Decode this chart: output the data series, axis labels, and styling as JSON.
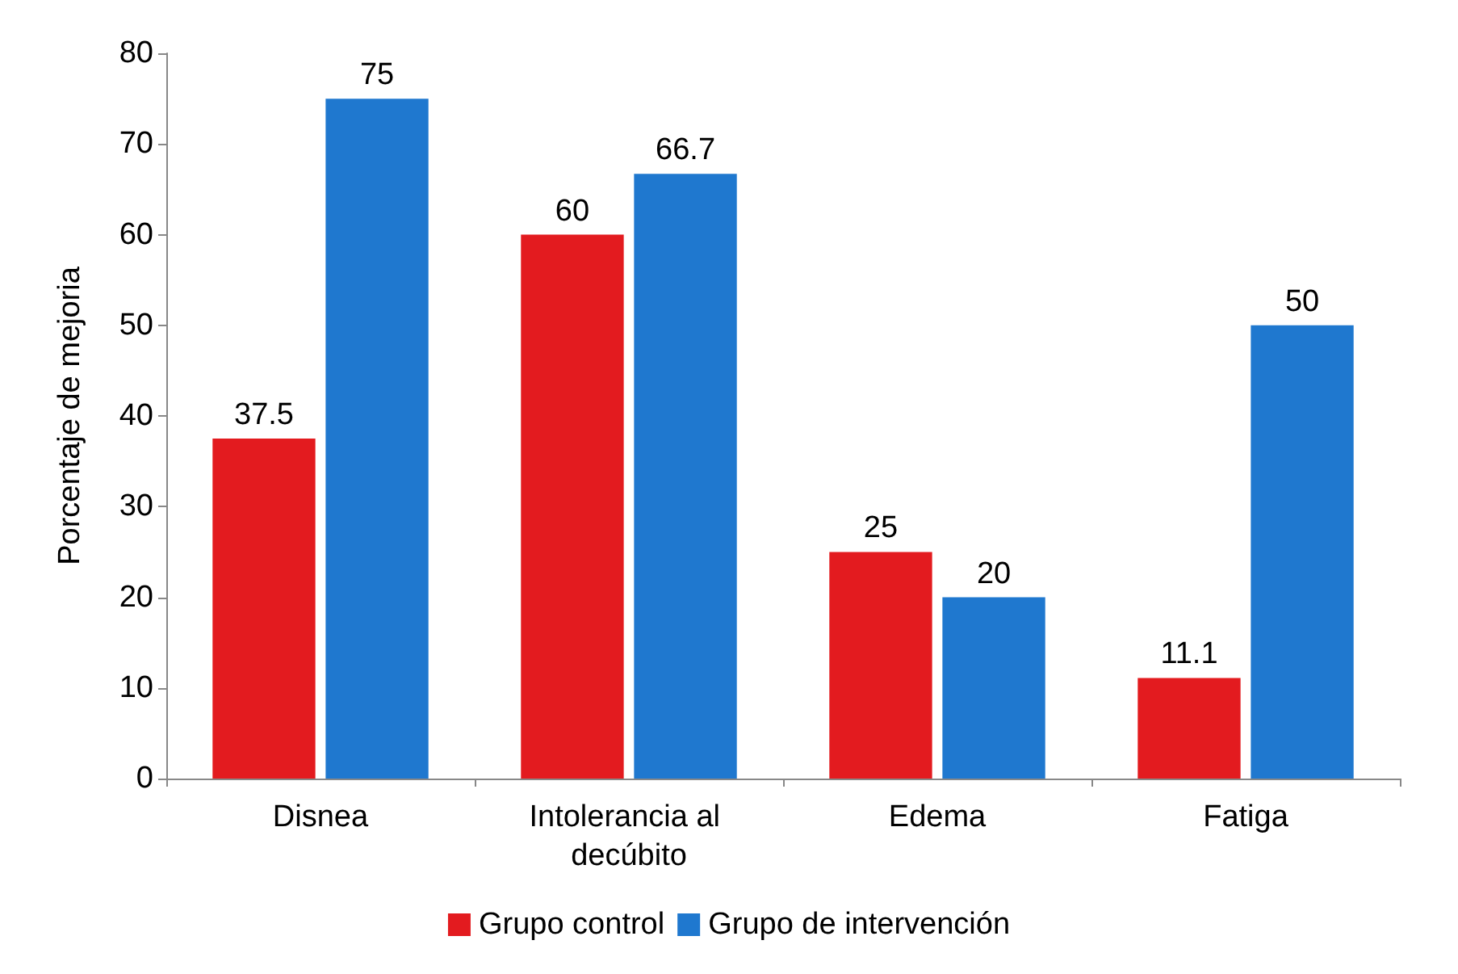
{
  "chart_data": {
    "type": "bar",
    "ylabel": "Porcentaje de mejoria",
    "categories": [
      "Disnea",
      "Intolerancia al decúbito",
      "Edema",
      "Fatiga"
    ],
    "series": [
      {
        "name": "Grupo control",
        "color": "#e31b1f",
        "values": [
          37.5,
          60,
          25,
          11.1
        ]
      },
      {
        "name": "Grupo de intervención",
        "color": "#1f78cf",
        "values": [
          75,
          66.7,
          20,
          50
        ]
      }
    ],
    "ylim": [
      0,
      80
    ],
    "yticks": [
      0,
      10,
      20,
      30,
      40,
      50,
      60,
      70,
      80
    ],
    "data_labels": true,
    "legend": "bottom",
    "grid": false
  }
}
